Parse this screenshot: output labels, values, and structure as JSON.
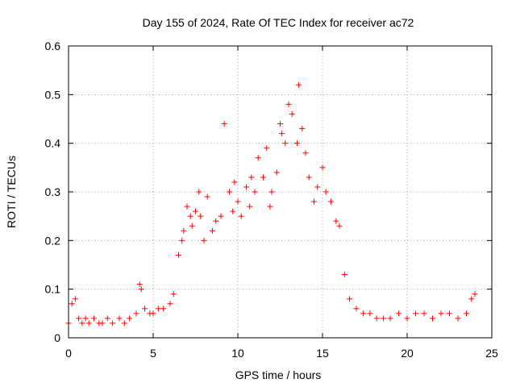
{
  "chart_data": {
    "type": "scatter",
    "title": "Day 155 of 2024, Rate Of TEC Index for receiver ac72",
    "xlabel": "GPS time / hours",
    "ylabel": "ROTI / TECUs",
    "xlim": [
      0,
      25
    ],
    "ylim": [
      0,
      0.6
    ],
    "xticks": [
      "0",
      "5",
      "10",
      "15",
      "20",
      "25"
    ],
    "yticks": [
      "0",
      "0.1",
      "0.2",
      "0.3",
      "0.4",
      "0.5",
      "0.6"
    ],
    "grid": true,
    "marker": "+",
    "marker_color": "#ff0000",
    "series": [
      {
        "x": [
          0.0,
          0.2,
          0.4,
          0.6,
          0.8,
          1.0,
          1.2,
          1.5,
          1.8,
          2.0,
          2.3,
          2.6,
          3.0,
          3.3,
          3.6,
          4.0,
          4.2,
          4.3,
          4.5,
          4.8,
          5.0,
          5.3,
          5.6,
          6.0,
          6.2,
          6.5,
          6.7,
          6.8,
          7.0,
          7.2,
          7.3,
          7.5,
          7.7,
          7.8,
          8.0,
          8.2,
          8.5,
          8.7,
          9.0,
          9.2,
          9.5,
          9.7,
          9.8,
          10.0,
          10.2,
          10.5,
          10.7,
          10.8,
          11.0,
          11.2,
          11.5,
          11.7,
          11.9,
          12.0,
          12.3,
          12.5,
          12.6,
          12.8,
          13.0,
          13.2,
          13.5,
          13.6,
          13.8,
          14.0,
          14.2,
          14.5,
          14.7,
          15.0,
          15.2,
          15.5,
          15.8,
          16.0,
          16.3,
          16.6,
          17.0,
          17.4,
          17.8,
          18.2,
          18.6,
          19.0,
          19.5,
          20.0,
          20.5,
          21.0,
          21.5,
          22.0,
          22.5,
          23.0,
          23.5,
          23.8,
          24.0
        ],
        "y": [
          0.03,
          0.07,
          0.08,
          0.04,
          0.03,
          0.04,
          0.03,
          0.04,
          0.03,
          0.03,
          0.04,
          0.03,
          0.04,
          0.03,
          0.04,
          0.05,
          0.11,
          0.1,
          0.06,
          0.05,
          0.05,
          0.06,
          0.06,
          0.07,
          0.09,
          0.17,
          0.2,
          0.22,
          0.27,
          0.25,
          0.23,
          0.26,
          0.3,
          0.25,
          0.2,
          0.29,
          0.22,
          0.24,
          0.25,
          0.44,
          0.3,
          0.26,
          0.32,
          0.28,
          0.25,
          0.31,
          0.27,
          0.33,
          0.3,
          0.37,
          0.33,
          0.39,
          0.27,
          0.3,
          0.34,
          0.44,
          0.42,
          0.4,
          0.48,
          0.46,
          0.4,
          0.52,
          0.43,
          0.38,
          0.33,
          0.28,
          0.31,
          0.35,
          0.3,
          0.28,
          0.24,
          0.23,
          0.13,
          0.08,
          0.06,
          0.05,
          0.05,
          0.04,
          0.04,
          0.04,
          0.05,
          0.04,
          0.05,
          0.05,
          0.04,
          0.05,
          0.05,
          0.04,
          0.05,
          0.08,
          0.09
        ]
      }
    ]
  }
}
